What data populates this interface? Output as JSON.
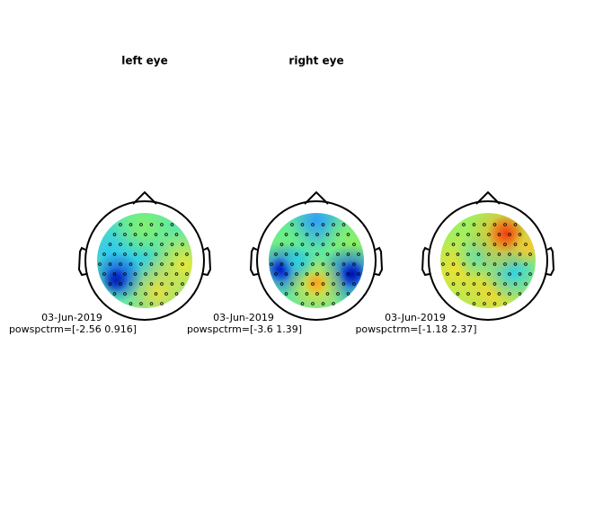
{
  "panels": [
    {
      "title": "left eye",
      "date": "03-Jun-2019",
      "range": "powspctrm=[-2.56 0.916]"
    },
    {
      "title": "right eye",
      "date": "03-Jun-2019",
      "range": "powspctrm=[-3.6 1.39]"
    },
    {
      "date": "03-Jun-2019",
      "range": "powspctrm=[-1.18 2.37]"
    }
  ]
}
